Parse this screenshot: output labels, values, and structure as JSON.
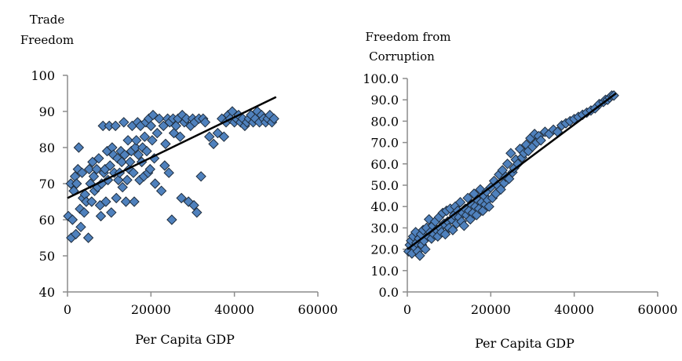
{
  "chart_data": [
    {
      "type": "scatter",
      "title": "",
      "ylabel_lines": [
        "Trade",
        "Freedom"
      ],
      "xlabel": "Per Capita GDP",
      "xlim": [
        0,
        60000
      ],
      "ylim": [
        40,
        100
      ],
      "x_ticks": [
        "0",
        "20000",
        "40000",
        "60000"
      ],
      "x_tick_values": [
        0,
        20000,
        40000,
        60000
      ],
      "y_ticks": [
        "40",
        "50",
        "60",
        "70",
        "80",
        "90",
        "100"
      ],
      "y_tick_values": [
        40,
        50,
        60,
        70,
        80,
        90,
        100
      ],
      "grid": false,
      "marker": "diamond",
      "marker_color": "#4f81bd",
      "trendline": {
        "x": [
          0,
          50000
        ],
        "y": [
          66,
          94
        ]
      },
      "points": [
        [
          200,
          61
        ],
        [
          800,
          70
        ],
        [
          900,
          55
        ],
        [
          1200,
          60
        ],
        [
          1500,
          68
        ],
        [
          1800,
          72
        ],
        [
          2000,
          56
        ],
        [
          2200,
          70
        ],
        [
          2500,
          74
        ],
        [
          2700,
          80
        ],
        [
          3000,
          63
        ],
        [
          3200,
          58
        ],
        [
          3500,
          73
        ],
        [
          3700,
          66
        ],
        [
          4000,
          62
        ],
        [
          4200,
          67
        ],
        [
          4500,
          65
        ],
        [
          5000,
          55
        ],
        [
          5200,
          74
        ],
        [
          5500,
          70
        ],
        [
          5800,
          65
        ],
        [
          6000,
          76
        ],
        [
          6300,
          72
        ],
        [
          6500,
          68
        ],
        [
          7000,
          74
        ],
        [
          7200,
          69
        ],
        [
          7500,
          77
        ],
        [
          7800,
          64
        ],
        [
          8000,
          61
        ],
        [
          8200,
          70
        ],
        [
          8500,
          86
        ],
        [
          8700,
          73
        ],
        [
          9000,
          74
        ],
        [
          9200,
          65
        ],
        [
          9500,
          79
        ],
        [
          9700,
          71
        ],
        [
          10000,
          86
        ],
        [
          10200,
          75
        ],
        [
          10500,
          62
        ],
        [
          10700,
          80
        ],
        [
          11000,
          78
        ],
        [
          11200,
          73
        ],
        [
          11500,
          86
        ],
        [
          11700,
          66
        ],
        [
          12000,
          77
        ],
        [
          12200,
          71
        ],
        [
          12500,
          73
        ],
        [
          12800,
          79
        ],
        [
          13000,
          76
        ],
        [
          13200,
          69
        ],
        [
          13500,
          87
        ],
        [
          13700,
          78
        ],
        [
          14000,
          65
        ],
        [
          14300,
          71
        ],
        [
          14500,
          82
        ],
        [
          14800,
          74
        ],
        [
          15000,
          76
        ],
        [
          15300,
          79
        ],
        [
          15500,
          86
        ],
        [
          15800,
          73
        ],
        [
          16000,
          65
        ],
        [
          16300,
          80
        ],
        [
          16500,
          82
        ],
        [
          16800,
          87
        ],
        [
          17000,
          78
        ],
        [
          17300,
          71
        ],
        [
          17500,
          86
        ],
        [
          17800,
          76
        ],
        [
          18000,
          80
        ],
        [
          18300,
          72
        ],
        [
          18500,
          83
        ],
        [
          18800,
          87
        ],
        [
          19000,
          79
        ],
        [
          19300,
          73
        ],
        [
          19500,
          88
        ],
        [
          19800,
          74
        ],
        [
          20000,
          86
        ],
        [
          20300,
          82
        ],
        [
          20500,
          89
        ],
        [
          20800,
          77
        ],
        [
          21000,
          70
        ],
        [
          21500,
          84
        ],
        [
          22000,
          88
        ],
        [
          22500,
          68
        ],
        [
          23000,
          86
        ],
        [
          23300,
          75
        ],
        [
          23500,
          81
        ],
        [
          24000,
          88
        ],
        [
          24300,
          73
        ],
        [
          24500,
          87
        ],
        [
          25000,
          60
        ],
        [
          25300,
          88
        ],
        [
          25500,
          84
        ],
        [
          26000,
          86
        ],
        [
          26500,
          88
        ],
        [
          27000,
          83
        ],
        [
          27300,
          66
        ],
        [
          27500,
          89
        ],
        [
          28000,
          87
        ],
        [
          28500,
          88
        ],
        [
          29000,
          65
        ],
        [
          29500,
          86
        ],
        [
          30000,
          88
        ],
        [
          30300,
          64
        ],
        [
          30500,
          87
        ],
        [
          31000,
          62
        ],
        [
          31500,
          88
        ],
        [
          32000,
          72
        ],
        [
          32500,
          88
        ],
        [
          33000,
          87
        ],
        [
          34000,
          83
        ],
        [
          35000,
          81
        ],
        [
          36000,
          84
        ],
        [
          37000,
          88
        ],
        [
          37500,
          83
        ],
        [
          38000,
          87
        ],
        [
          38500,
          89
        ],
        [
          39000,
          88
        ],
        [
          39500,
          90
        ],
        [
          40000,
          87
        ],
        [
          40500,
          88
        ],
        [
          41000,
          89
        ],
        [
          41500,
          87
        ],
        [
          42000,
          88
        ],
        [
          42500,
          86
        ],
        [
          43000,
          87
        ],
        [
          43500,
          88
        ],
        [
          44000,
          89
        ],
        [
          44500,
          87
        ],
        [
          45000,
          88
        ],
        [
          45500,
          90
        ],
        [
          46000,
          87
        ],
        [
          46500,
          89
        ],
        [
          47000,
          88
        ],
        [
          47500,
          87
        ],
        [
          48000,
          88
        ],
        [
          48500,
          89
        ],
        [
          49000,
          87
        ],
        [
          49500,
          88
        ]
      ]
    },
    {
      "type": "scatter",
      "title": "",
      "ylabel_lines": [
        "Freedom from",
        "Corruption"
      ],
      "xlabel": "Per Capita GDP",
      "xlim": [
        0,
        60000
      ],
      "ylim": [
        0,
        100
      ],
      "x_ticks": [
        "0",
        "20000",
        "40000",
        "60000"
      ],
      "x_tick_values": [
        0,
        20000,
        40000,
        60000
      ],
      "y_ticks": [
        "0.0",
        "10.0",
        "20.0",
        "30.0",
        "40.0",
        "50.0",
        "60.0",
        "70.0",
        "80.0",
        "90.0",
        "100.0"
      ],
      "y_tick_values": [
        0,
        10,
        20,
        30,
        40,
        50,
        60,
        70,
        80,
        90,
        100
      ],
      "grid": false,
      "marker": "diamond",
      "marker_color": "#4f81bd",
      "trendline": {
        "x": [
          0,
          50000
        ],
        "y": [
          20,
          93
        ]
      },
      "points": [
        [
          300,
          19
        ],
        [
          600,
          22
        ],
        [
          900,
          24
        ],
        [
          1100,
          18
        ],
        [
          1400,
          26
        ],
        [
          1700,
          21
        ],
        [
          2000,
          28
        ],
        [
          2200,
          23
        ],
        [
          2500,
          19
        ],
        [
          2800,
          25
        ],
        [
          3000,
          17
        ],
        [
          3300,
          27
        ],
        [
          3500,
          22
        ],
        [
          3800,
          29
        ],
        [
          4000,
          24
        ],
        [
          4300,
          20
        ],
        [
          4600,
          30
        ],
        [
          5000,
          26
        ],
        [
          5200,
          34
        ],
        [
          5500,
          28
        ],
        [
          5800,
          25
        ],
        [
          6100,
          31
        ],
        [
          6400,
          27
        ],
        [
          6700,
          33
        ],
        [
          7000,
          29
        ],
        [
          7300,
          26
        ],
        [
          7600,
          35
        ],
        [
          7900,
          30
        ],
        [
          8200,
          28
        ],
        [
          8500,
          37
        ],
        [
          8800,
          32
        ],
        [
          9100,
          27
        ],
        [
          9400,
          38
        ],
        [
          9700,
          33
        ],
        [
          10000,
          30
        ],
        [
          10300,
          39
        ],
        [
          10600,
          34
        ],
        [
          10900,
          29
        ],
        [
          11200,
          36
        ],
        [
          11500,
          40
        ],
        [
          11800,
          32
        ],
        [
          12100,
          38
        ],
        [
          12400,
          35
        ],
        [
          12700,
          42
        ],
        [
          13000,
          33
        ],
        [
          13300,
          37
        ],
        [
          13600,
          31
        ],
        [
          13900,
          39
        ],
        [
          14200,
          36
        ],
        [
          14500,
          44
        ],
        [
          14800,
          38
        ],
        [
          15100,
          34
        ],
        [
          15400,
          41
        ],
        [
          15700,
          37
        ],
        [
          16000,
          46
        ],
        [
          16300,
          40
        ],
        [
          16600,
          36
        ],
        [
          16900,
          43
        ],
        [
          17200,
          39
        ],
        [
          17500,
          48
        ],
        [
          17800,
          42
        ],
        [
          18100,
          38
        ],
        [
          18400,
          45
        ],
        [
          18700,
          41
        ],
        [
          19000,
          47
        ],
        [
          19300,
          43
        ],
        [
          19600,
          40
        ],
        [
          20000,
          49
        ],
        [
          20400,
          44
        ],
        [
          20800,
          52
        ],
        [
          21200,
          46
        ],
        [
          21600,
          50
        ],
        [
          22000,
          55
        ],
        [
          22400,
          48
        ],
        [
          22800,
          57
        ],
        [
          23200,
          51
        ],
        [
          23600,
          54
        ],
        [
          24000,
          60
        ],
        [
          24400,
          53
        ],
        [
          24800,
          65
        ],
        [
          25200,
          56
        ],
        [
          25600,
          58
        ],
        [
          26000,
          62
        ],
        [
          26500,
          60
        ],
        [
          27000,
          67
        ],
        [
          27500,
          63
        ],
        [
          28000,
          65
        ],
        [
          28500,
          69
        ],
        [
          29000,
          66
        ],
        [
          29500,
          72
        ],
        [
          30000,
          68
        ],
        [
          30500,
          74
        ],
        [
          31000,
          70
        ],
        [
          31500,
          73
        ],
        [
          32000,
          71
        ],
        [
          33000,
          75
        ],
        [
          34000,
          74
        ],
        [
          35000,
          76
        ],
        [
          36000,
          75
        ],
        [
          37000,
          78
        ],
        [
          38000,
          79
        ],
        [
          39000,
          80
        ],
        [
          40000,
          81
        ],
        [
          41000,
          82
        ],
        [
          42000,
          83
        ],
        [
          43000,
          84
        ],
        [
          44000,
          85
        ],
        [
          45000,
          86
        ],
        [
          46000,
          88
        ],
        [
          47000,
          89
        ],
        [
          47500,
          90
        ],
        [
          48000,
          90
        ],
        [
          48500,
          91
        ],
        [
          49000,
          92
        ],
        [
          49500,
          92
        ]
      ]
    }
  ]
}
